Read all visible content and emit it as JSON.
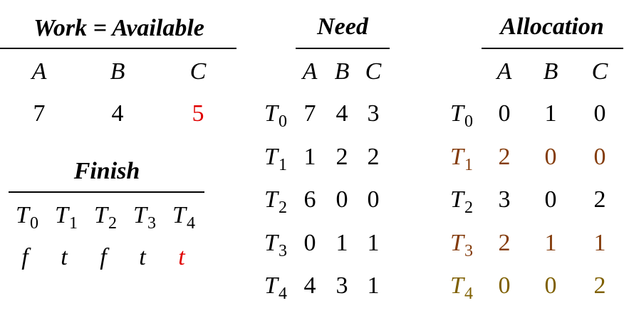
{
  "work": {
    "title": "Work = Available",
    "columns": [
      "A",
      "B",
      "C"
    ],
    "values": [
      7,
      4,
      5
    ]
  },
  "finish": {
    "title": "Finish",
    "processes": [
      {
        "name": "T",
        "index": "0"
      },
      {
        "name": "T",
        "index": "1"
      },
      {
        "name": "T",
        "index": "2"
      },
      {
        "name": "T",
        "index": "3"
      },
      {
        "name": "T",
        "index": "4"
      }
    ],
    "values": [
      "f",
      "t",
      "f",
      "t",
      "t"
    ]
  },
  "need": {
    "title": "Need",
    "columns": [
      "A",
      "B",
      "C"
    ],
    "rows": [
      {
        "process": {
          "name": "T",
          "index": "0"
        },
        "values": [
          7,
          4,
          3
        ]
      },
      {
        "process": {
          "name": "T",
          "index": "1"
        },
        "values": [
          1,
          2,
          2
        ]
      },
      {
        "process": {
          "name": "T",
          "index": "2"
        },
        "values": [
          6,
          0,
          0
        ]
      },
      {
        "process": {
          "name": "T",
          "index": "3"
        },
        "values": [
          0,
          1,
          1
        ]
      },
      {
        "process": {
          "name": "T",
          "index": "4"
        },
        "values": [
          4,
          3,
          1
        ]
      }
    ]
  },
  "allocation": {
    "title": "Allocation",
    "columns": [
      "A",
      "B",
      "C"
    ],
    "rows": [
      {
        "process": {
          "name": "T",
          "index": "0"
        },
        "values": [
          0,
          1,
          0
        ]
      },
      {
        "process": {
          "name": "T",
          "index": "1"
        },
        "values": [
          2,
          0,
          0
        ]
      },
      {
        "process": {
          "name": "T",
          "index": "2"
        },
        "values": [
          3,
          0,
          2
        ]
      },
      {
        "process": {
          "name": "T",
          "index": "3"
        },
        "values": [
          2,
          1,
          1
        ]
      },
      {
        "process": {
          "name": "T",
          "index": "4"
        },
        "values": [
          0,
          0,
          2
        ]
      }
    ]
  }
}
